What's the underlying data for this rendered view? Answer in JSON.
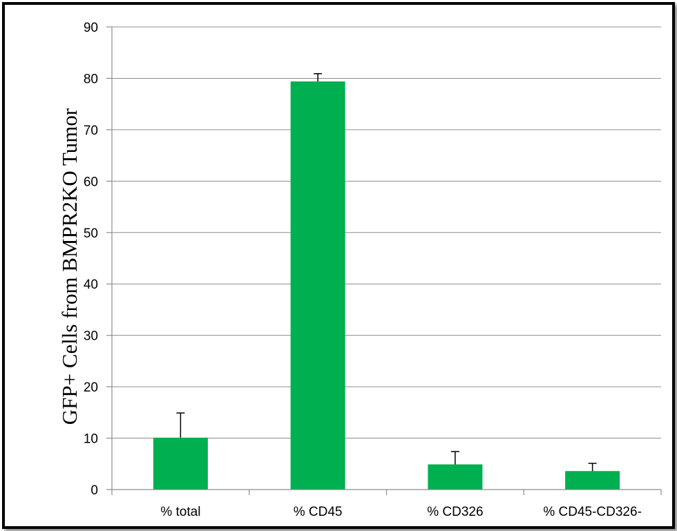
{
  "chart_data": {
    "type": "bar",
    "categories": [
      "% total",
      "% CD45",
      "% CD326",
      "% CD45-CD326-"
    ],
    "values": [
      10.1,
      79.4,
      4.9,
      3.6
    ],
    "error_bars_upper": [
      4.8,
      1.5,
      2.5,
      1.5
    ],
    "ylabel": "GFP+ Cells from BMPR2KO Tumor",
    "xlabel": "",
    "ylim": [
      0,
      90
    ],
    "yticks": [
      0,
      10,
      20,
      30,
      40,
      50,
      60,
      70,
      80,
      90
    ],
    "grid": true,
    "bar_color": "#00b050",
    "legend": "none"
  }
}
